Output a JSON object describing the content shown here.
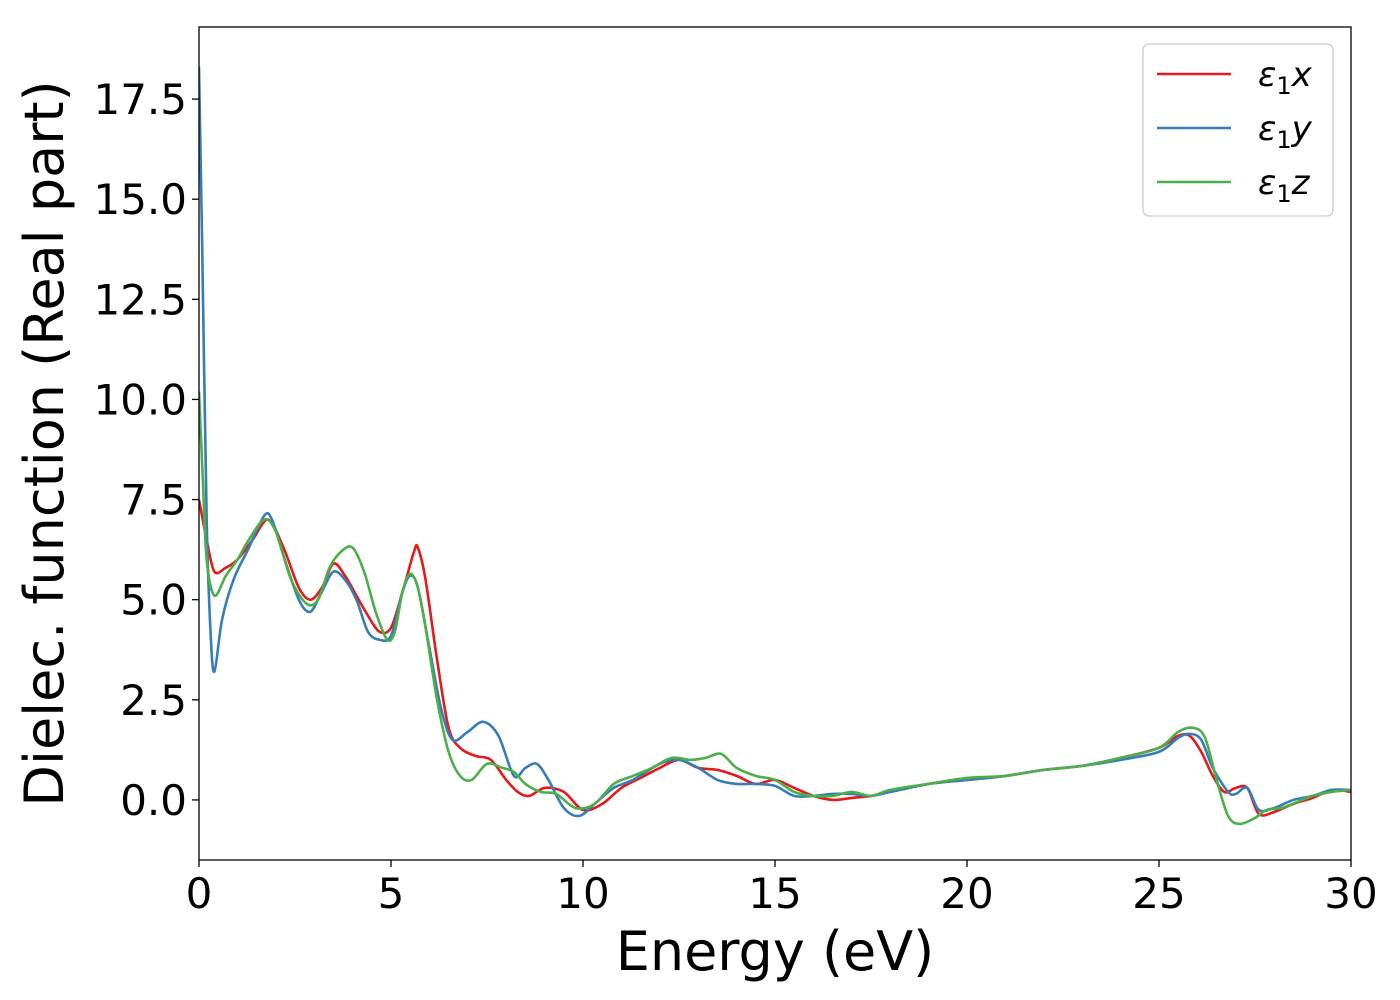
{
  "chart_data": {
    "type": "line",
    "title": "",
    "xlabel": "Energy (eV)",
    "ylabel": "Dielec. function (Real part)",
    "xlim": [
      0,
      30
    ],
    "ylim": [
      -1.5,
      19.3
    ],
    "xticks": [
      0,
      5,
      10,
      15,
      20,
      25,
      30
    ],
    "xtick_labels": [
      "0",
      "5",
      "10",
      "15",
      "20",
      "25",
      "30"
    ],
    "yticks": [
      0.0,
      2.5,
      5.0,
      7.5,
      10.0,
      12.5,
      15.0,
      17.5
    ],
    "ytick_labels": [
      "0.0",
      "2.5",
      "5.0",
      "7.5",
      "10.0",
      "12.5",
      "15.0",
      "17.5"
    ],
    "grid": false,
    "legend_position": "top-right",
    "series": [
      {
        "name": "ε1x",
        "legend": {
          "symbol": "ε",
          "sub": "1",
          "axis": "x"
        },
        "color": "#e41a1c",
        "x": [
          0,
          0.2,
          0.4,
          0.7,
          1.0,
          1.4,
          1.8,
          2.2,
          2.6,
          2.9,
          3.2,
          3.5,
          3.8,
          4.1,
          4.4,
          4.7,
          5.0,
          5.3,
          5.6,
          5.7,
          5.9,
          6.2,
          6.5,
          6.8,
          7.2,
          7.6,
          8.0,
          8.3,
          8.6,
          9.0,
          9.5,
          10.0,
          10.5,
          11.0,
          11.5,
          12.0,
          12.5,
          13.0,
          13.5,
          14.0,
          14.5,
          15.0,
          15.5,
          16.0,
          16.5,
          17.0,
          17.5,
          18.0,
          19.0,
          20.0,
          21.0,
          22.0,
          23.0,
          24.0,
          25.0,
          25.5,
          25.8,
          26.1,
          26.4,
          26.7,
          27.0,
          27.3,
          27.6,
          28.0,
          28.5,
          29.0,
          29.5,
          30.0
        ],
        "y": [
          7.5,
          6.5,
          5.7,
          5.8,
          6.0,
          6.5,
          7.0,
          6.3,
          5.3,
          5.0,
          5.3,
          5.9,
          5.6,
          5.1,
          4.6,
          4.2,
          4.3,
          5.2,
          6.2,
          6.3,
          5.5,
          3.5,
          1.8,
          1.3,
          1.1,
          1.0,
          0.5,
          0.2,
          0.1,
          0.3,
          0.2,
          -0.25,
          -0.1,
          0.3,
          0.55,
          0.8,
          1.0,
          0.8,
          0.75,
          0.6,
          0.4,
          0.5,
          0.3,
          0.1,
          0.0,
          0.05,
          0.1,
          0.2,
          0.4,
          0.5,
          0.6,
          0.75,
          0.85,
          1.05,
          1.3,
          1.6,
          1.6,
          1.2,
          0.6,
          0.2,
          0.3,
          0.3,
          -0.35,
          -0.3,
          -0.1,
          0.05,
          0.25,
          0.2
        ]
      },
      {
        "name": "ε1y",
        "legend": {
          "symbol": "ε",
          "sub": "1",
          "axis": "y"
        },
        "color": "#377eb8",
        "x": [
          0,
          0.08,
          0.2,
          0.3,
          0.4,
          0.6,
          0.9,
          1.3,
          1.7,
          1.9,
          2.2,
          2.6,
          2.9,
          3.2,
          3.5,
          3.8,
          4.1,
          4.4,
          4.7,
          5.0,
          5.3,
          5.5,
          5.7,
          6.0,
          6.3,
          6.6,
          7.0,
          7.4,
          7.8,
          8.2,
          8.5,
          8.8,
          9.1,
          9.5,
          9.9,
          10.3,
          10.8,
          11.3,
          12.0,
          12.5,
          13.0,
          13.5,
          14.0,
          14.5,
          15.0,
          15.5,
          16.0,
          16.5,
          17.0,
          17.5,
          18.0,
          19.0,
          20.0,
          21.0,
          22.0,
          23.0,
          24.0,
          25.0,
          25.5,
          25.8,
          26.1,
          26.4,
          26.8,
          27.0,
          27.3,
          27.6,
          28.0,
          28.5,
          29.0,
          29.5,
          30.0
        ],
        "y": [
          18.3,
          14.0,
          7.0,
          4.2,
          3.2,
          4.5,
          5.5,
          6.3,
          7.1,
          7.0,
          6.1,
          5.0,
          4.7,
          5.2,
          5.7,
          5.5,
          5.0,
          4.2,
          4.0,
          4.1,
          5.2,
          5.6,
          5.3,
          3.8,
          2.3,
          1.5,
          1.7,
          1.95,
          1.6,
          0.6,
          0.8,
          0.9,
          0.5,
          -0.2,
          -0.4,
          -0.1,
          0.3,
          0.5,
          0.9,
          1.0,
          0.8,
          0.5,
          0.4,
          0.4,
          0.35,
          0.1,
          0.1,
          0.15,
          0.15,
          0.1,
          0.2,
          0.4,
          0.5,
          0.6,
          0.75,
          0.85,
          1.0,
          1.2,
          1.55,
          1.65,
          1.5,
          0.8,
          0.2,
          0.15,
          0.3,
          -0.25,
          -0.2,
          0.0,
          0.1,
          0.25,
          0.25
        ]
      },
      {
        "name": "ε1z",
        "legend": {
          "symbol": "ε",
          "sub": "1",
          "axis": "z"
        },
        "color": "#4daf4a",
        "x": [
          0,
          0.1,
          0.2,
          0.4,
          0.7,
          1.0,
          1.3,
          1.7,
          2.0,
          2.4,
          2.8,
          3.1,
          3.4,
          3.7,
          4.0,
          4.3,
          4.6,
          4.9,
          5.1,
          5.3,
          5.5,
          5.7,
          5.9,
          6.2,
          6.5,
          6.8,
          7.1,
          7.5,
          7.9,
          8.2,
          8.5,
          8.9,
          9.3,
          9.8,
          10.3,
          10.8,
          11.3,
          11.8,
          12.3,
          12.8,
          13.2,
          13.6,
          14.0,
          14.5,
          15.0,
          15.5,
          16.0,
          16.5,
          17.0,
          17.5,
          18.0,
          19.0,
          20.0,
          21.0,
          22.0,
          23.0,
          24.0,
          25.0,
          25.5,
          25.9,
          26.2,
          26.5,
          26.8,
          27.1,
          27.5,
          27.8,
          28.2,
          28.6,
          29.0,
          29.5,
          30.0
        ],
        "y": [
          10.2,
          8.0,
          6.0,
          5.1,
          5.6,
          6.0,
          6.5,
          7.0,
          6.7,
          5.5,
          4.9,
          5.0,
          5.8,
          6.2,
          6.3,
          5.7,
          4.7,
          4.0,
          4.2,
          5.2,
          5.65,
          5.3,
          4.3,
          2.5,
          1.2,
          0.6,
          0.5,
          0.9,
          0.8,
          0.7,
          0.4,
          0.2,
          0.15,
          -0.2,
          -0.1,
          0.4,
          0.6,
          0.8,
          1.05,
          1.0,
          1.05,
          1.15,
          0.8,
          0.6,
          0.5,
          0.2,
          0.1,
          0.1,
          0.2,
          0.1,
          0.25,
          0.4,
          0.55,
          0.6,
          0.75,
          0.85,
          1.05,
          1.3,
          1.7,
          1.8,
          1.55,
          0.5,
          -0.4,
          -0.6,
          -0.45,
          -0.25,
          -0.2,
          -0.05,
          0.1,
          0.2,
          0.25
        ]
      }
    ]
  }
}
